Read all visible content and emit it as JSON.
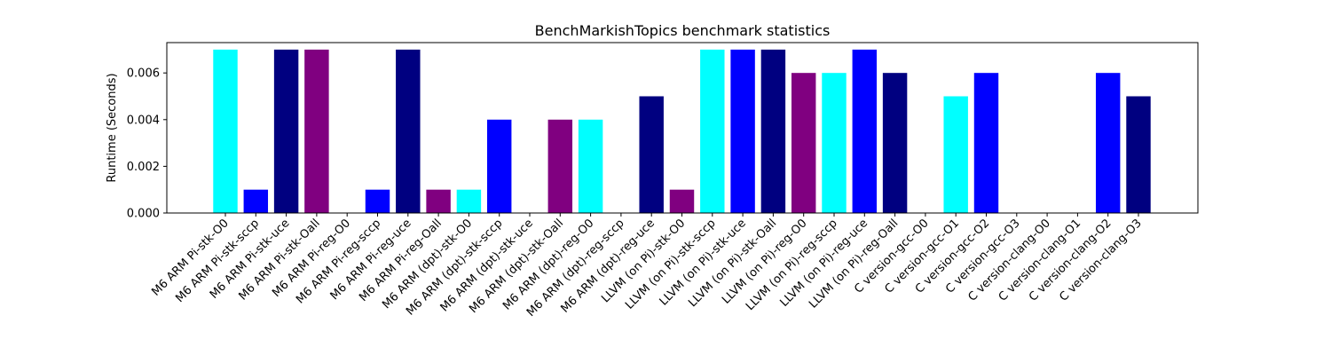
{
  "chart_data": {
    "type": "bar",
    "title": "BenchMarkishTopics benchmark statistics",
    "xlabel": "",
    "ylabel": "Runtime (Seconds)",
    "ylim": [
      0,
      0.0073
    ],
    "yticks": [
      0.0,
      0.002,
      0.004,
      0.006
    ],
    "ytick_labels": [
      "0.000",
      "0.002",
      "0.004",
      "0.006"
    ],
    "grid": false,
    "categories": [
      "M6 ARM Pi-stk-O0",
      "M6 ARM Pi-stk-sccp",
      "M6 ARM Pi-stk-uce",
      "M6 ARM Pi-stk-Oall",
      "M6 ARM Pi-reg-O0",
      "M6 ARM Pi-reg-sccp",
      "M6 ARM Pi-reg-uce",
      "M6 ARM Pi-reg-Oall",
      "M6 ARM (dpt)-stk-O0",
      "M6 ARM (dpt)-stk-sccp",
      "M6 ARM (dpt)-stk-uce",
      "M6 ARM (dpt)-stk-Oall",
      "M6 ARM (dpt)-reg-O0",
      "M6 ARM (dpt)-reg-sccp",
      "M6 ARM (dpt)-reg-uce",
      "LLVM (on Pi)-stk-O0",
      "LLVM (on Pi)-stk-sccp",
      "LLVM (on Pi)-stk-uce",
      "LLVM (on Pi)-stk-Oall",
      "LLVM (on Pi)-reg-O0",
      "LLVM (on Pi)-reg-sccp",
      "LLVM (on Pi)-reg-uce",
      "LLVM (on Pi)-reg-Oall",
      "C version-gcc-O0",
      "C version-gcc-O1",
      "C version-gcc-O2",
      "C version-gcc-O3",
      "C version-clang-O0",
      "C version-clang-O1",
      "C version-clang-O2",
      "C version-clang-O3"
    ],
    "values": [
      0.007,
      0.001,
      0.007,
      0.007,
      0.0,
      0.001,
      0.007,
      0.001,
      0.001,
      0.004,
      0.0,
      0.004,
      0.004,
      0.0,
      0.005,
      0.001,
      0.007,
      0.007,
      0.007,
      0.006,
      0.006,
      0.007,
      0.006,
      0.0,
      0.005,
      0.006,
      0.0,
      0.0,
      0.0,
      0.006,
      0.005
    ],
    "colors": [
      "#00ffff",
      "#0000ff",
      "#000080",
      "#800080",
      "#00ffff",
      "#0000ff",
      "#000080",
      "#800080",
      "#00ffff",
      "#0000ff",
      "#000080",
      "#800080",
      "#00ffff",
      "#0000ff",
      "#000080",
      "#800080",
      "#00ffff",
      "#0000ff",
      "#000080",
      "#800080",
      "#00ffff",
      "#0000ff",
      "#000080",
      "#800080",
      "#00ffff",
      "#0000ff",
      "#000080",
      "#800080",
      "#00ffff",
      "#0000ff",
      "#000080"
    ]
  }
}
